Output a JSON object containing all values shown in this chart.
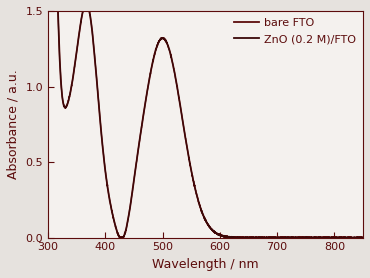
{
  "xlabel": "Wavelength / nm",
  "ylabel": "Absorbance / a.u.",
  "xlim": [
    300,
    850
  ],
  "ylim": [
    0.0,
    1.5
  ],
  "xticks": [
    300,
    400,
    500,
    600,
    700,
    800
  ],
  "yticks": [
    0.0,
    0.5,
    1.0,
    1.5
  ],
  "legend_entries": [
    "bare FTO",
    "ZnO (0.2 M)/FTO"
  ],
  "line_color_1": "#5c0c0c",
  "line_color_2": "#3a0808",
  "background_color": "#e6e2de",
  "axes_background": "#f4f1ee",
  "spine_color": "#5c0c0c",
  "tick_color": "#5c0c0c",
  "label_color": "#5c0c0c"
}
